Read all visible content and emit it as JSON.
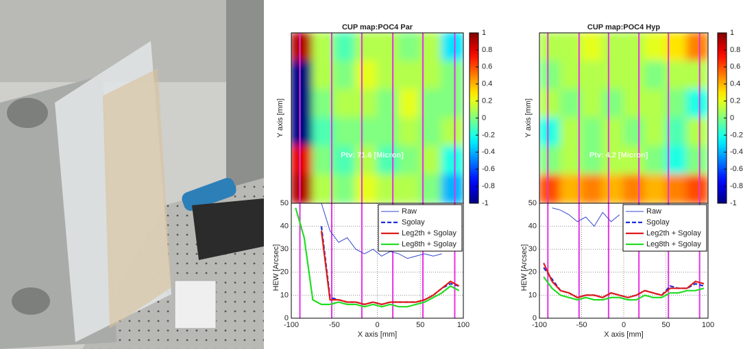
{
  "chart_data": [
    {
      "type": "heatmap",
      "title": "CUP map:POC4 Par",
      "y_label": "Y axis [mm]",
      "annotation": "Ptv: 71.6 [Micron]",
      "colormap": "jet",
      "zlim": [
        -1,
        1
      ],
      "zticks": [
        1,
        0.8,
        0.6,
        0.4,
        0.2,
        0,
        -0.2,
        -0.4,
        -0.6,
        -0.8,
        -1
      ],
      "xlim": [
        -100,
        100
      ],
      "vlines": [
        -90,
        -53,
        -18,
        18,
        53,
        90
      ],
      "vline_color": "#e632e6",
      "z": [
        [
          0.9,
          0.1,
          -0.1,
          0.1,
          0.1,
          0,
          0.1,
          -0.3
        ],
        [
          -1,
          0.1,
          0,
          0.2,
          0.1,
          0.1,
          0.1,
          0
        ],
        [
          -1,
          0,
          0.1,
          0.1,
          0,
          0.2,
          0,
          0
        ],
        [
          -1,
          -0.1,
          0,
          0,
          0,
          0.1,
          0,
          0.1
        ],
        [
          0.8,
          0,
          -0.1,
          0.1,
          -0.1,
          0,
          0.1,
          -0.2
        ],
        [
          0.9,
          0.1,
          0,
          0.2,
          0.1,
          0.1,
          0,
          -0.4
        ]
      ]
    },
    {
      "type": "line",
      "x_label": "X axis [mm]",
      "y_label": "HEW [Arcsec]",
      "xlim": [
        -100,
        100
      ],
      "ylim": [
        0,
        50
      ],
      "xticks": [
        -100,
        -50,
        0,
        50,
        100
      ],
      "yticks": [
        0,
        10,
        20,
        30,
        40,
        50
      ],
      "grid": true,
      "legend": "upper right",
      "vlines": [
        -90,
        -53,
        -18,
        18,
        53,
        90
      ],
      "vline_color": "#e632e6",
      "x": [
        -95,
        -85,
        -75,
        -65,
        -55,
        -45,
        -35,
        -25,
        -15,
        -5,
        5,
        15,
        25,
        35,
        45,
        55,
        65,
        75,
        85,
        95
      ],
      "series": [
        {
          "name": "Raw",
          "color": "#3344cc",
          "dash": false,
          "values": [
            null,
            null,
            null,
            50,
            38,
            33,
            35,
            30,
            28,
            30,
            27,
            29,
            28,
            26,
            27,
            28,
            27,
            28,
            null,
            null
          ]
        },
        {
          "name": "Sgolay",
          "color": "#1a2ed6",
          "dash": true,
          "values": [
            null,
            null,
            null,
            40,
            9,
            8,
            7,
            7,
            6,
            7,
            6,
            7,
            7,
            7,
            7,
            8,
            10,
            13,
            15,
            14
          ]
        },
        {
          "name": "Leg2th + Sgolay",
          "color": "#e01a1a",
          "dash": false,
          "values": [
            null,
            null,
            null,
            38,
            8,
            8,
            7,
            7,
            6,
            7,
            6,
            7,
            7,
            7,
            7,
            8,
            10,
            13,
            16,
            14
          ]
        },
        {
          "name": "Leg8th + Sgolay",
          "color": "#22dd22",
          "dash": false,
          "values": [
            48,
            35,
            8,
            6,
            6,
            7,
            6,
            6,
            5,
            6,
            5,
            6,
            5,
            5,
            6,
            7,
            9,
            11,
            14,
            12
          ]
        }
      ]
    },
    {
      "type": "heatmap",
      "title": "CUP map:POC4 Hyp",
      "y_label": "Y axis [mm]",
      "annotation": "Ptv: 4.2 [Micron]",
      "colormap": "jet",
      "zlim": [
        -1,
        1
      ],
      "zticks": [
        1,
        0.8,
        0.6,
        0.4,
        0.2,
        0,
        -0.2,
        -0.4,
        -0.6,
        -0.8,
        -1
      ],
      "xlim": [
        -100,
        100
      ],
      "vlines": [
        -90,
        -53,
        -18,
        18,
        53,
        90
      ],
      "vline_color": "#e632e6",
      "z": [
        [
          0.1,
          0.1,
          0.2,
          0.1,
          0.1,
          0.2,
          0.3,
          0.5
        ],
        [
          0,
          0.1,
          0.1,
          0.1,
          0.1,
          0,
          0.1,
          0.1
        ],
        [
          0.1,
          0,
          0.1,
          0,
          0.1,
          0.1,
          0,
          -0.2
        ],
        [
          -0.2,
          0.1,
          0,
          0.1,
          0,
          0.1,
          -0.1,
          0.1
        ],
        [
          0,
          0.1,
          0,
          0.1,
          0.1,
          0,
          -0.2,
          0
        ],
        [
          0.6,
          0.4,
          0.5,
          0.4,
          0.5,
          0.4,
          0.5,
          0.6
        ]
      ]
    },
    {
      "type": "line",
      "x_label": "X axis [mm]",
      "y_label": "HEW [Arcsec]",
      "xlim": [
        -100,
        100
      ],
      "ylim": [
        0,
        50
      ],
      "xticks": [
        -100,
        -50,
        0,
        50,
        100
      ],
      "yticks": [
        0,
        10,
        20,
        30,
        40,
        50
      ],
      "grid": true,
      "legend": "upper right",
      "vlines": [
        -90,
        -53,
        -18,
        18,
        53,
        90
      ],
      "vline_color": "#e632e6",
      "x": [
        -95,
        -85,
        -75,
        -65,
        -55,
        -45,
        -35,
        -25,
        -15,
        -5,
        5,
        15,
        25,
        35,
        45,
        55,
        65,
        75,
        85,
        95
      ],
      "series": [
        {
          "name": "Raw",
          "color": "#3344cc",
          "dash": false,
          "values": [
            null,
            48,
            47,
            45,
            42,
            44,
            40,
            46,
            42,
            45,
            null,
            null,
            null,
            null,
            null,
            null,
            null,
            null,
            null,
            null
          ]
        },
        {
          "name": "Sgolay",
          "color": "#1a2ed6",
          "dash": true,
          "values": [
            22,
            17,
            12,
            11,
            9,
            10,
            10,
            9,
            11,
            10,
            9,
            10,
            12,
            11,
            10,
            14,
            13,
            13,
            15,
            14
          ]
        },
        {
          "name": "Leg2th + Sgolay",
          "color": "#e01a1a",
          "dash": false,
          "values": [
            24,
            16,
            12,
            11,
            9,
            10,
            10,
            9,
            11,
            10,
            9,
            10,
            12,
            11,
            10,
            13,
            13,
            13,
            16,
            15
          ]
        },
        {
          "name": "Leg8th + Sgolay",
          "color": "#22dd22",
          "dash": false,
          "values": [
            18,
            13,
            10,
            9,
            8,
            9,
            8,
            8,
            9,
            9,
            8,
            8,
            10,
            9,
            9,
            11,
            11,
            12,
            12,
            13
          ]
        }
      ]
    }
  ]
}
